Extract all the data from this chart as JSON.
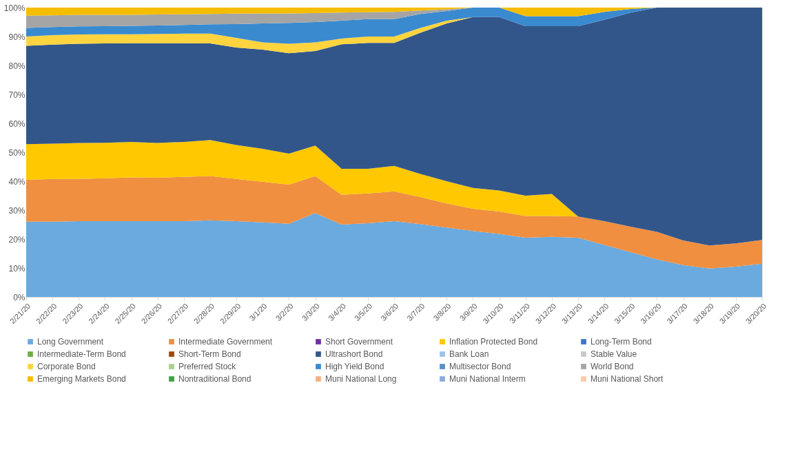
{
  "chart_data": {
    "type": "area",
    "stacked": true,
    "categories": [
      "2/21/20",
      "2/22/20",
      "2/23/20",
      "2/24/20",
      "2/25/20",
      "2/26/20",
      "2/27/20",
      "2/28/20",
      "2/29/20",
      "3/1/20",
      "3/2/20",
      "3/3/20",
      "3/4/20",
      "3/5/20",
      "3/6/20",
      "3/7/20",
      "3/8/20",
      "3/9/20",
      "3/10/20",
      "3/11/20",
      "3/12/20",
      "3/13/20",
      "3/14/20",
      "3/15/20",
      "3/16/20",
      "3/17/20",
      "3/18/20",
      "3/19/20",
      "3/20/20"
    ],
    "ylim": [
      0,
      100
    ],
    "yticks": [
      {
        "value": 0,
        "label": "0%"
      },
      {
        "value": 10,
        "label": "10%"
      },
      {
        "value": 20,
        "label": "20%"
      },
      {
        "value": 30,
        "label": "30%"
      },
      {
        "value": 40,
        "label": "40%"
      },
      {
        "value": 50,
        "label": "50%"
      },
      {
        "value": 60,
        "label": "60%"
      },
      {
        "value": 70,
        "label": "70%"
      },
      {
        "value": 80,
        "label": "80%"
      },
      {
        "value": 90,
        "label": "90%"
      },
      {
        "value": 100,
        "label": "100%"
      }
    ],
    "grid": false,
    "legend": "bottom",
    "series": [
      {
        "name": "Long Government",
        "color": "#6aaadf",
        "values": [
          26,
          26,
          26.2,
          26.2,
          26.2,
          26.2,
          26.2,
          26.5,
          26.2,
          25.8,
          25.3,
          29,
          25,
          25.5,
          26.2,
          25.2,
          24,
          22.8,
          21.8,
          20.5,
          20.8,
          20.5,
          18,
          15.5,
          13,
          11,
          9.8,
          10.5,
          11.5
        ]
      },
      {
        "name": "Intermediate Government",
        "color": "#f08f40",
        "values": [
          14.5,
          14.8,
          14.6,
          14.8,
          15.1,
          15,
          15.3,
          15.3,
          14.6,
          14,
          13.5,
          12.8,
          10.3,
          10.3,
          10.3,
          9.3,
          8.3,
          7.7,
          7.7,
          7.5,
          7.2,
          7.3,
          8.2,
          8.8,
          9.5,
          8.5,
          8,
          8,
          8.2
        ]
      },
      {
        "name": "Short Government",
        "color": "#7030a0",
        "values": [
          null,
          null,
          null,
          null,
          null,
          null,
          null,
          null,
          null,
          null,
          null,
          null,
          null,
          null,
          null,
          null,
          null,
          null,
          null,
          null,
          null,
          null,
          null,
          null,
          null,
          null,
          null,
          null,
          null
        ]
      },
      {
        "name": "Inflation Protected Bond",
        "color": "#ffc800",
        "values": [
          12.3,
          12.2,
          12.4,
          12.3,
          12.3,
          12,
          12.1,
          12.4,
          11.7,
          11.4,
          10.7,
          10.5,
          9,
          8.5,
          8.8,
          8,
          7.7,
          7.2,
          7.3,
          7,
          7.6,
          0,
          0,
          0,
          0,
          0,
          0,
          0,
          0
        ]
      },
      {
        "name": "Long-Term Bond",
        "color": "#4472c4",
        "values": [
          null,
          null,
          null,
          null,
          null,
          null,
          null,
          null,
          null,
          null,
          null,
          null,
          null,
          null,
          null,
          null,
          null,
          null,
          null,
          null,
          null,
          null,
          null,
          null,
          null,
          null,
          null,
          null,
          null
        ]
      },
      {
        "name": "Intermediate-Term Bond",
        "color": "#70ad47",
        "values": [
          null,
          null,
          null,
          null,
          null,
          null,
          null,
          null,
          null,
          null,
          null,
          null,
          null,
          null,
          null,
          null,
          null,
          null,
          null,
          null,
          null,
          null,
          null,
          null,
          null,
          null,
          null,
          null,
          null
        ]
      },
      {
        "name": "Short-Term Bond",
        "color": "#9e480e",
        "values": [
          null,
          null,
          null,
          null,
          null,
          null,
          null,
          null,
          null,
          null,
          null,
          null,
          null,
          null,
          null,
          null,
          null,
          null,
          null,
          null,
          null,
          null,
          null,
          null,
          null,
          null,
          null,
          null,
          null
        ]
      },
      {
        "name": "Ultrashort Bond",
        "color": "#32568a",
        "values": [
          34,
          34.2,
          34.3,
          34.3,
          34.1,
          34.5,
          34.1,
          33.4,
          33.7,
          34.3,
          34.7,
          32.7,
          43,
          43.5,
          42.5,
          48.8,
          54.5,
          59,
          59.9,
          58.6,
          58,
          65.8,
          69.6,
          74,
          77.5,
          80.5,
          82.2,
          81.5,
          80.3
        ]
      },
      {
        "name": "Bank Loan",
        "color": "#9dc3e6",
        "values": [
          null,
          null,
          null,
          null,
          null,
          null,
          null,
          null,
          null,
          null,
          null,
          null,
          null,
          null,
          null,
          null,
          null,
          null,
          null,
          null,
          null,
          null,
          null,
          null,
          null,
          null,
          null,
          null,
          null
        ]
      },
      {
        "name": "Stable Value",
        "color": "#c8c8c8",
        "values": [
          null,
          null,
          null,
          null,
          null,
          null,
          null,
          null,
          null,
          null,
          null,
          null,
          null,
          null,
          null,
          null,
          null,
          null,
          null,
          null,
          null,
          null,
          null,
          null,
          null,
          null,
          null,
          null,
          null
        ]
      },
      {
        "name": "Corporate Bond",
        "color": "#ffd43f",
        "values": [
          3.2,
          3.3,
          3.2,
          3.2,
          3.1,
          3.2,
          3.3,
          3.4,
          3.3,
          2.5,
          3.3,
          3,
          2,
          2.2,
          2.2,
          1.7,
          1,
          0,
          0,
          0,
          0,
          0,
          0,
          0,
          0,
          0,
          0,
          0,
          0
        ]
      },
      {
        "name": "Preferred Stock",
        "color": "#a9d18e",
        "values": [
          null,
          null,
          null,
          null,
          null,
          null,
          null,
          null,
          null,
          null,
          null,
          null,
          null,
          null,
          null,
          null,
          null,
          null,
          null,
          null,
          null,
          null,
          null,
          null,
          null,
          null,
          null,
          null,
          null
        ]
      },
      {
        "name": "High Yield Bond",
        "color": "#3a8ad0",
        "values": [
          3,
          2.8,
          2.8,
          2.8,
          2.9,
          2.9,
          3,
          3.2,
          4.8,
          6.5,
          7.2,
          7,
          6.2,
          6,
          6,
          4.8,
          3.3,
          3.3,
          3.3,
          3.4,
          3.4,
          3.4,
          2.7,
          1.2,
          0,
          0,
          0,
          0,
          0
        ]
      },
      {
        "name": "Multisector Bond",
        "color": "#5a8fc6",
        "values": [
          null,
          null,
          null,
          null,
          null,
          null,
          null,
          null,
          null,
          null,
          null,
          null,
          null,
          null,
          null,
          null,
          null,
          null,
          null,
          null,
          null,
          null,
          null,
          null,
          null,
          null,
          null,
          null,
          null
        ]
      },
      {
        "name": "World Bond",
        "color": "#a5a5a5",
        "values": [
          4.2,
          4,
          4,
          3.9,
          3.8,
          3.8,
          3.7,
          3.6,
          3.6,
          3.5,
          3.3,
          3.1,
          2.8,
          2.4,
          2.5,
          1.2,
          0.6,
          0,
          0,
          0,
          0,
          0,
          0,
          0,
          0,
          0,
          0,
          0,
          0
        ]
      },
      {
        "name": "Emerging Markets Bond",
        "color": "#f5bd00",
        "values": [
          2.8,
          2.7,
          2.5,
          2.5,
          2.5,
          2.4,
          2.3,
          2.2,
          2.1,
          2,
          2,
          1.9,
          1.7,
          1.6,
          1.5,
          1,
          0.6,
          0,
          0,
          3,
          3,
          3,
          1.5,
          0.5,
          0,
          0,
          0,
          0,
          0
        ]
      },
      {
        "name": "Nontraditional Bond",
        "color": "#43a047",
        "values": [
          null,
          null,
          null,
          null,
          null,
          null,
          null,
          null,
          null,
          null,
          null,
          null,
          null,
          null,
          null,
          null,
          null,
          null,
          null,
          null,
          null,
          null,
          null,
          null,
          null,
          null,
          null,
          null,
          null
        ]
      },
      {
        "name": "Muni National Long",
        "color": "#f4b183",
        "values": [
          null,
          null,
          null,
          null,
          null,
          null,
          null,
          null,
          null,
          null,
          null,
          null,
          null,
          null,
          null,
          null,
          null,
          null,
          null,
          null,
          null,
          null,
          null,
          null,
          null,
          null,
          null,
          null,
          null
        ]
      },
      {
        "name": "Muni National Interm",
        "color": "#8faadc",
        "values": [
          null,
          null,
          null,
          null,
          null,
          null,
          null,
          null,
          null,
          null,
          null,
          null,
          null,
          null,
          null,
          null,
          null,
          null,
          null,
          null,
          null,
          null,
          null,
          null,
          null,
          null,
          null,
          null,
          null
        ]
      },
      {
        "name": "Muni National Short",
        "color": "#f8cbad",
        "values": [
          null,
          null,
          null,
          null,
          null,
          null,
          null,
          null,
          null,
          null,
          null,
          null,
          null,
          null,
          null,
          null,
          null,
          null,
          null,
          null,
          null,
          null,
          null,
          null,
          null,
          null,
          null,
          null,
          null
        ]
      }
    ]
  }
}
